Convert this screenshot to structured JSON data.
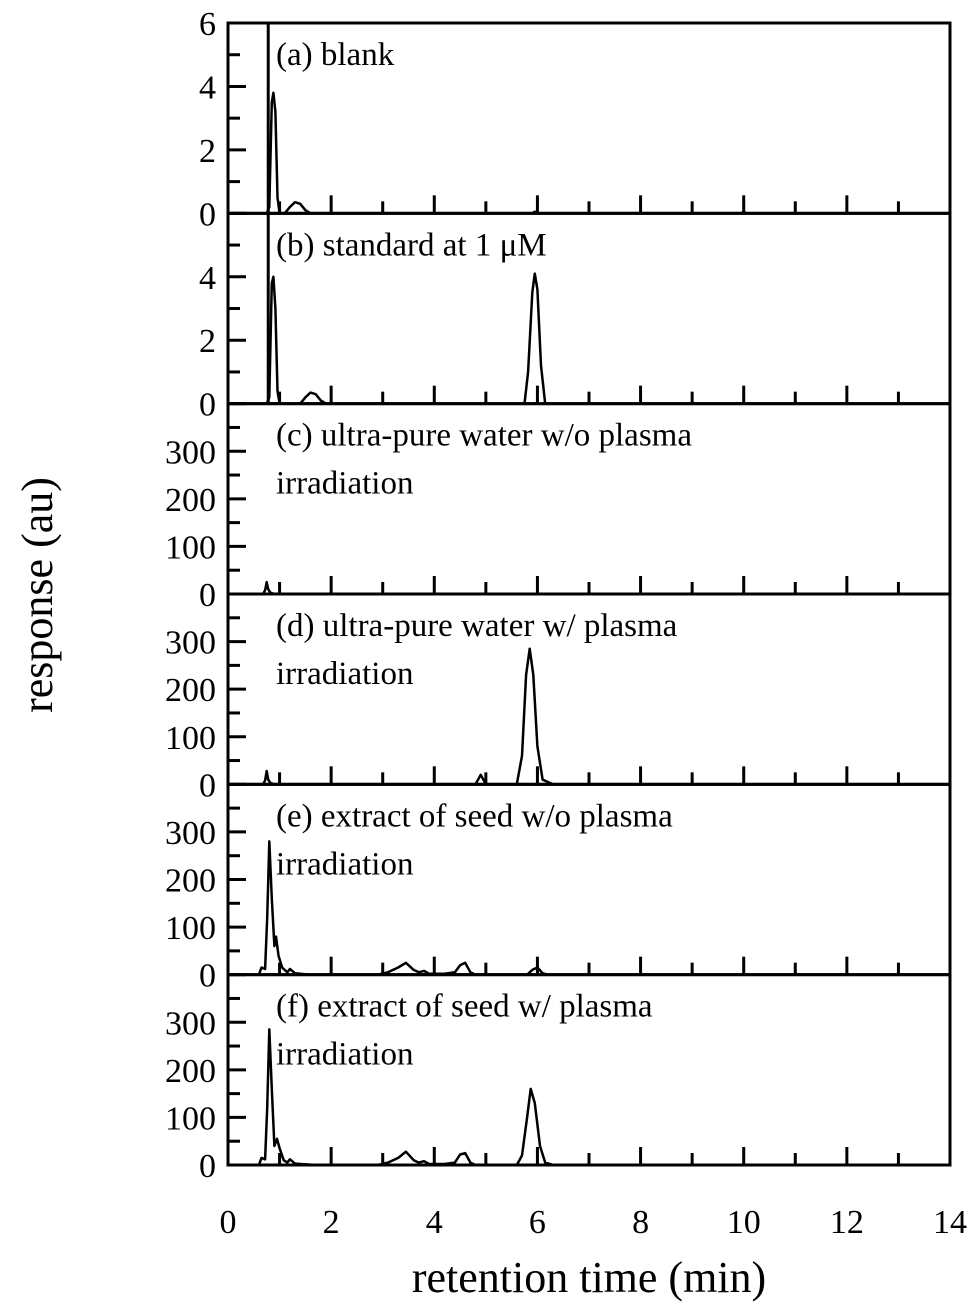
{
  "chart_data": {
    "type": "line",
    "layout": "6 vertically stacked panels sharing x-axis",
    "xlabel": "retention time (min)",
    "ylabel": "response (au)",
    "xlim": [
      0,
      14
    ],
    "x_ticks": [
      0,
      2,
      4,
      6,
      8,
      10,
      12,
      14
    ],
    "x_minor_tick_step": 1,
    "grid": false,
    "legend": "none",
    "panels": [
      {
        "id": "a",
        "label": "(a) blank",
        "label_lines": [
          "(a) blank"
        ],
        "ylim": [
          0,
          6
        ],
        "y_ticks": [
          0,
          2,
          4,
          6
        ],
        "y_tick_labels": [
          "0",
          "2",
          "4",
          "6"
        ],
        "y_minor_step": 1,
        "injection_marker_x": 0.78,
        "series": [
          {
            "name": "blank",
            "points": [
              [
                0.0,
                0
              ],
              [
                0.75,
                0
              ],
              [
                0.8,
                0.2
              ],
              [
                0.85,
                3.5
              ],
              [
                0.88,
                3.8
              ],
              [
                0.92,
                3.2
              ],
              [
                0.96,
                0.5
              ],
              [
                1.0,
                0
              ],
              [
                1.1,
                0
              ],
              [
                1.2,
                0.2
              ],
              [
                1.3,
                0.35
              ],
              [
                1.4,
                0.3
              ],
              [
                1.5,
                0.1
              ],
              [
                1.6,
                0
              ],
              [
                5.9,
                0
              ],
              [
                5.95,
                0.05
              ],
              [
                6.0,
                0
              ],
              [
                9.95,
                0
              ],
              [
                10.0,
                0.05
              ],
              [
                10.05,
                0
              ],
              [
                14.0,
                0
              ]
            ]
          }
        ]
      },
      {
        "id": "b",
        "label": "(b) standard at 1 μM",
        "label_lines": [
          "(b) standard at 1 μM"
        ],
        "ylim": [
          0,
          6
        ],
        "y_ticks": [
          0,
          2,
          4
        ],
        "y_tick_labels": [
          "0",
          "2",
          "4"
        ],
        "y_minor_step": 1,
        "injection_marker_x": 0.78,
        "series": [
          {
            "name": "standard 1 uM",
            "points": [
              [
                0.0,
                0
              ],
              [
                0.75,
                0
              ],
              [
                0.8,
                0.2
              ],
              [
                0.85,
                3.8
              ],
              [
                0.88,
                4.0
              ],
              [
                0.92,
                3.0
              ],
              [
                0.96,
                0.4
              ],
              [
                1.0,
                0
              ],
              [
                1.4,
                0
              ],
              [
                1.5,
                0.2
              ],
              [
                1.6,
                0.35
              ],
              [
                1.7,
                0.3
              ],
              [
                1.8,
                0.1
              ],
              [
                1.9,
                0
              ],
              [
                5.75,
                0
              ],
              [
                5.82,
                1.0
              ],
              [
                5.9,
                3.5
              ],
              [
                5.95,
                4.1
              ],
              [
                6.0,
                3.6
              ],
              [
                6.07,
                1.2
              ],
              [
                6.15,
                0
              ],
              [
                14.0,
                0
              ]
            ]
          }
        ]
      },
      {
        "id": "c",
        "label": "(c) ultra-pure water w/o plasma irradiation",
        "label_lines": [
          "(c) ultra-pure water w/o plasma",
          "irradiation"
        ],
        "ylim": [
          0,
          400
        ],
        "y_ticks": [
          0,
          100,
          200,
          300
        ],
        "y_tick_labels": [
          "0",
          "100",
          "200",
          "300"
        ],
        "y_minor_step": 50,
        "series": [
          {
            "name": "water w/o plasma",
            "points": [
              [
                0.0,
                0
              ],
              [
                0.68,
                0
              ],
              [
                0.72,
                8
              ],
              [
                0.75,
                25
              ],
              [
                0.78,
                10
              ],
              [
                0.82,
                3
              ],
              [
                0.9,
                0
              ],
              [
                14.0,
                0
              ]
            ]
          }
        ]
      },
      {
        "id": "d",
        "label": "(d) ultra-pure water w/ plasma irradiation",
        "label_lines": [
          "(d) ultra-pure water w/",
          "plasma irradiation"
        ],
        "label_lines_rendered": [
          "(d) ultra-pure water w/ plasma",
          "irradiation"
        ],
        "ylim": [
          0,
          400
        ],
        "y_ticks": [
          0,
          100,
          200,
          300
        ],
        "y_tick_labels": [
          "0",
          "100",
          "200",
          "300"
        ],
        "y_minor_step": 50,
        "series": [
          {
            "name": "water w/ plasma",
            "points": [
              [
                0.0,
                0
              ],
              [
                0.68,
                0
              ],
              [
                0.72,
                8
              ],
              [
                0.75,
                28
              ],
              [
                0.78,
                10
              ],
              [
                0.82,
                3
              ],
              [
                0.9,
                0
              ],
              [
                4.8,
                0
              ],
              [
                4.9,
                20
              ],
              [
                5.0,
                0
              ],
              [
                5.6,
                0
              ],
              [
                5.7,
                60
              ],
              [
                5.78,
                230
              ],
              [
                5.85,
                285
              ],
              [
                5.92,
                230
              ],
              [
                6.0,
                80
              ],
              [
                6.1,
                10
              ],
              [
                6.3,
                0
              ],
              [
                14.0,
                0
              ]
            ]
          }
        ]
      },
      {
        "id": "e",
        "label": "(e) extract of seed w/o plasma irradiation",
        "label_lines": [
          "(e) extract of seed w/o plasma",
          "irradiation"
        ],
        "ylim": [
          0,
          400
        ],
        "y_ticks": [
          0,
          100,
          200,
          300
        ],
        "y_tick_labels": [
          "0",
          "100",
          "200",
          "300"
        ],
        "y_minor_step": 50,
        "series": [
          {
            "name": "seed w/o plasma",
            "points": [
              [
                0.0,
                0
              ],
              [
                0.6,
                0
              ],
              [
                0.65,
                15
              ],
              [
                0.72,
                12
              ],
              [
                0.76,
                120
              ],
              [
                0.8,
                280
              ],
              [
                0.85,
                160
              ],
              [
                0.9,
                60
              ],
              [
                0.93,
                80
              ],
              [
                0.98,
                40
              ],
              [
                1.05,
                15
              ],
              [
                1.15,
                5
              ],
              [
                1.2,
                12
              ],
              [
                1.3,
                3
              ],
              [
                1.6,
                0
              ],
              [
                2.9,
                0
              ],
              [
                3.1,
                5
              ],
              [
                3.3,
                15
              ],
              [
                3.45,
                25
              ],
              [
                3.6,
                10
              ],
              [
                3.7,
                5
              ],
              [
                3.8,
                8
              ],
              [
                3.9,
                2
              ],
              [
                4.2,
                2
              ],
              [
                4.4,
                5
              ],
              [
                4.5,
                20
              ],
              [
                4.6,
                25
              ],
              [
                4.7,
                5
              ],
              [
                4.8,
                0
              ],
              [
                5.8,
                0
              ],
              [
                5.9,
                10
              ],
              [
                6.0,
                15
              ],
              [
                6.1,
                3
              ],
              [
                6.2,
                0
              ],
              [
                14.0,
                0
              ]
            ]
          }
        ]
      },
      {
        "id": "f",
        "label": "(f) extract of seed w/ plasma irradiation",
        "label_lines": [
          "(f) extract of seed w/ plasma",
          "irradiation"
        ],
        "ylim": [
          0,
          400
        ],
        "y_ticks": [
          0,
          100,
          200,
          300
        ],
        "y_tick_labels": [
          "0",
          "100",
          "200",
          "300"
        ],
        "y_minor_step": 50,
        "series": [
          {
            "name": "seed w/ plasma",
            "points": [
              [
                0.0,
                0
              ],
              [
                0.6,
                0
              ],
              [
                0.65,
                15
              ],
              [
                0.72,
                12
              ],
              [
                0.76,
                120
              ],
              [
                0.8,
                285
              ],
              [
                0.85,
                160
              ],
              [
                0.9,
                40
              ],
              [
                0.95,
                55
              ],
              [
                1.0,
                35
              ],
              [
                1.08,
                10
              ],
              [
                1.15,
                5
              ],
              [
                1.2,
                12
              ],
              [
                1.3,
                3
              ],
              [
                1.7,
                0
              ],
              [
                2.9,
                0
              ],
              [
                3.1,
                5
              ],
              [
                3.3,
                15
              ],
              [
                3.45,
                28
              ],
              [
                3.6,
                10
              ],
              [
                3.7,
                5
              ],
              [
                3.8,
                8
              ],
              [
                3.9,
                2
              ],
              [
                4.2,
                2
              ],
              [
                4.4,
                5
              ],
              [
                4.5,
                22
              ],
              [
                4.6,
                25
              ],
              [
                4.7,
                5
              ],
              [
                4.8,
                0
              ],
              [
                5.6,
                0
              ],
              [
                5.7,
                20
              ],
              [
                5.8,
                100
              ],
              [
                5.87,
                160
              ],
              [
                5.95,
                130
              ],
              [
                6.05,
                40
              ],
              [
                6.15,
                5
              ],
              [
                6.3,
                0
              ],
              [
                14.0,
                0
              ]
            ]
          }
        ]
      }
    ]
  }
}
